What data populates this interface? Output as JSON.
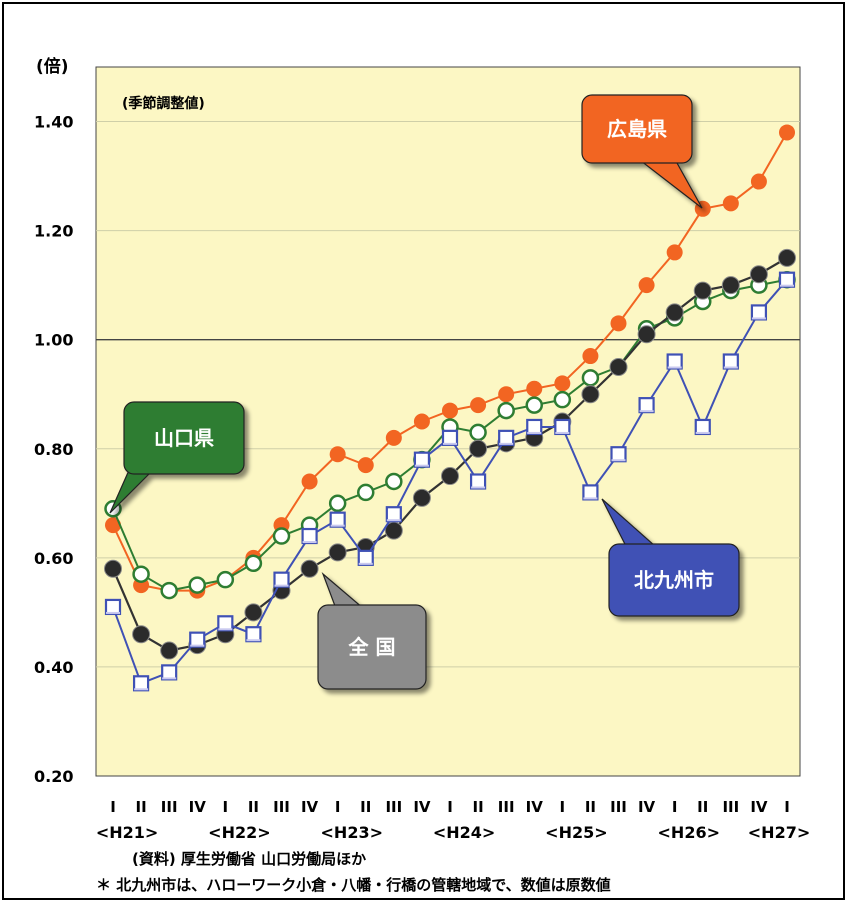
{
  "chart_data": {
    "type": "line",
    "unit_label": "(倍)",
    "note": "(季節調整値)",
    "ylim": [
      0.2,
      1.5
    ],
    "y_ticks": [
      "0.20",
      "0.40",
      "0.60",
      "0.80",
      "1.00",
      "1.20",
      "1.40"
    ],
    "quarters": [
      "I",
      "II",
      "III",
      "IV",
      "I",
      "II",
      "III",
      "IV",
      "I",
      "II",
      "III",
      "IV",
      "I",
      "II",
      "III",
      "IV",
      "I",
      "II",
      "III",
      "IV",
      "I",
      "II",
      "III",
      "IV",
      "I"
    ],
    "years": [
      "<H21>",
      "<H22>",
      "<H23>",
      "<H24>",
      "<H25>",
      "<H26>",
      "<H27>"
    ],
    "highlight_line": 1.0,
    "grid": true,
    "series": [
      {
        "name": "広島県",
        "color": "#f26522",
        "marker": "circle-filled",
        "values": [
          0.66,
          0.55,
          0.54,
          0.54,
          0.56,
          0.6,
          0.66,
          0.74,
          0.79,
          0.77,
          0.82,
          0.85,
          0.87,
          0.88,
          0.9,
          0.91,
          0.92,
          0.97,
          1.03,
          1.1,
          1.16,
          1.24,
          1.25,
          1.29,
          1.38
        ]
      },
      {
        "name": "山口県",
        "color": "#2e7d32",
        "marker": "circle-hollow",
        "values": [
          0.69,
          0.57,
          0.54,
          0.55,
          0.56,
          0.59,
          0.64,
          0.66,
          0.7,
          0.72,
          0.74,
          0.78,
          0.84,
          0.83,
          0.87,
          0.88,
          0.89,
          0.93,
          0.95,
          1.02,
          1.04,
          1.07,
          1.09,
          1.1,
          1.11
        ]
      },
      {
        "name": "全 国",
        "color": "#333333",
        "marker": "circle-dark",
        "values": [
          0.58,
          0.46,
          0.43,
          0.44,
          0.46,
          0.5,
          0.54,
          0.58,
          0.61,
          0.62,
          0.65,
          0.71,
          0.75,
          0.8,
          0.81,
          0.82,
          0.85,
          0.9,
          0.95,
          1.01,
          1.05,
          1.09,
          1.1,
          1.12,
          1.15
        ]
      },
      {
        "name": "北九州市",
        "color": "#3f51b5",
        "marker": "square-hollow",
        "values": [
          0.51,
          0.37,
          0.39,
          0.45,
          0.48,
          0.46,
          0.56,
          0.64,
          0.67,
          0.6,
          0.68,
          0.78,
          0.82,
          0.74,
          0.82,
          0.84,
          0.84,
          0.72,
          0.79,
          0.88,
          0.96,
          0.84,
          0.96,
          1.05,
          1.11
        ]
      }
    ],
    "callouts": [
      {
        "text": "広島県",
        "series": "広島県",
        "bg": "#f26522"
      },
      {
        "text": "山口県",
        "series": "山口県",
        "bg": "#2e7d32"
      },
      {
        "text": "全 国",
        "series": "全 国",
        "bg": "#8c8c8c"
      },
      {
        "text": "北九州市",
        "series": "北九州市",
        "bg": "#3f51b5"
      }
    ]
  },
  "footnotes": {
    "source": "(資料) 厚生労働省 山口労働局ほか",
    "remark": "＊ 北九州市は、ハローワーク小倉・八幡・行橋の管轄地域で、数値は原数値"
  }
}
